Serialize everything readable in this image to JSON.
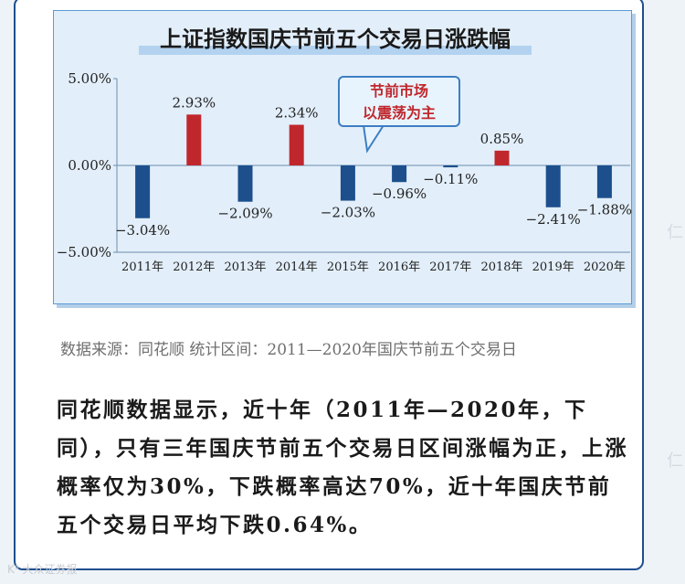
{
  "chart_data": {
    "type": "bar",
    "title": "上证指数国庆节前五个交易日涨跌幅",
    "categories": [
      "2011年",
      "2012年",
      "2013年",
      "2014年",
      "2015年",
      "2016年",
      "2017年",
      "2018年",
      "2019年",
      "2020年"
    ],
    "values": [
      -3.04,
      2.93,
      -2.09,
      2.34,
      -2.03,
      -0.96,
      -0.11,
      0.85,
      -2.41,
      -1.88
    ],
    "data_labels": [
      "−3.04%",
      "2.93%",
      "−2.09%",
      "2.34%",
      "−2.03%",
      "−0.96%",
      "−0.11%",
      "0.85%",
      "−2.41%",
      "−1.88%"
    ],
    "y_ticks": [
      5,
      0,
      -5
    ],
    "y_tick_labels": [
      "5.00%",
      "0.00%",
      "−5.00%"
    ],
    "ylim": [
      -5,
      5
    ],
    "xlabel": "",
    "ylabel": "",
    "grid": false,
    "colors": {
      "positive": "#c0272d",
      "negative": "#1c4f8c",
      "axis": "#6c8fb0"
    },
    "annotation": {
      "lines": [
        "节前市场",
        "以震荡为主"
      ]
    }
  },
  "source": "数据来源：同花顺 统计区间：2011—2020年国庆节前五个交易日",
  "body_text": "同花顺数据显示，近十年（2011年—2020年，下同），只有三年国庆节前五个交易日区间涨幅为正，上涨概率仅为30%，下跌概率高达70%，近十年国庆节前五个交易日平均下跌0.64%。",
  "watermark": "K⁵ 大众证券报",
  "side_watermark": "仁",
  "theme": {
    "frame": "#1f4f8f",
    "panel": "#e2eef9",
    "accent": "#c0272d"
  }
}
